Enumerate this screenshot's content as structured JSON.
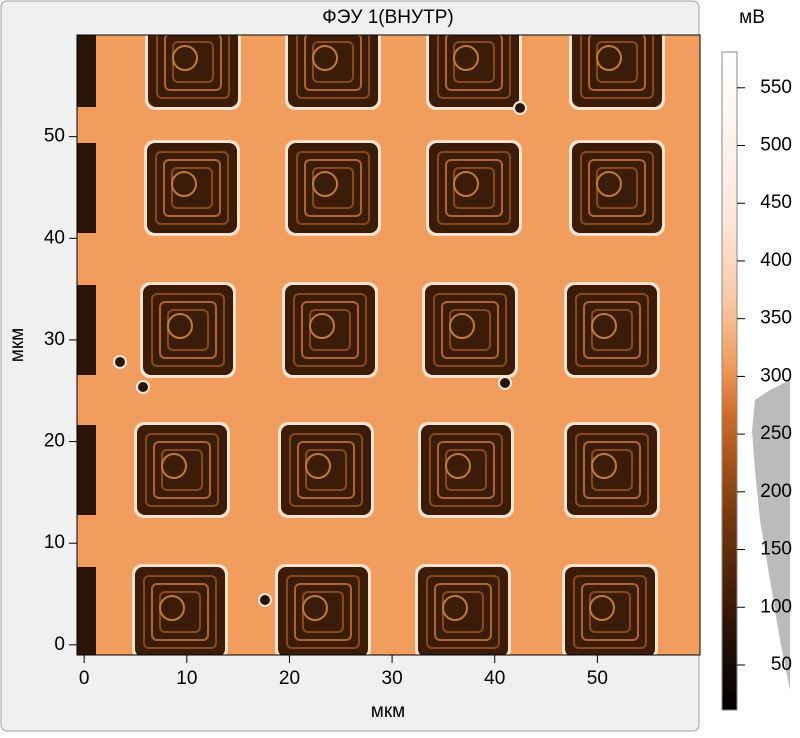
{
  "chart_data": {
    "type": "heatmap",
    "title": "ФЭУ 1(ВНУТР)",
    "x_label": "мкм",
    "y_label": "мкм",
    "xlim": [
      -0.7,
      60
    ],
    "ylim": [
      -1,
      60
    ],
    "xticks": [
      0,
      10,
      20,
      30,
      40,
      50
    ],
    "yticks": [
      0,
      10,
      20,
      30,
      40,
      50
    ],
    "colorbar": {
      "label": "мВ",
      "lim": [
        11,
        581
      ],
      "ticks": [
        50,
        100,
        150,
        200,
        250,
        300,
        350,
        400,
        450,
        500,
        550
      ]
    }
  }
}
